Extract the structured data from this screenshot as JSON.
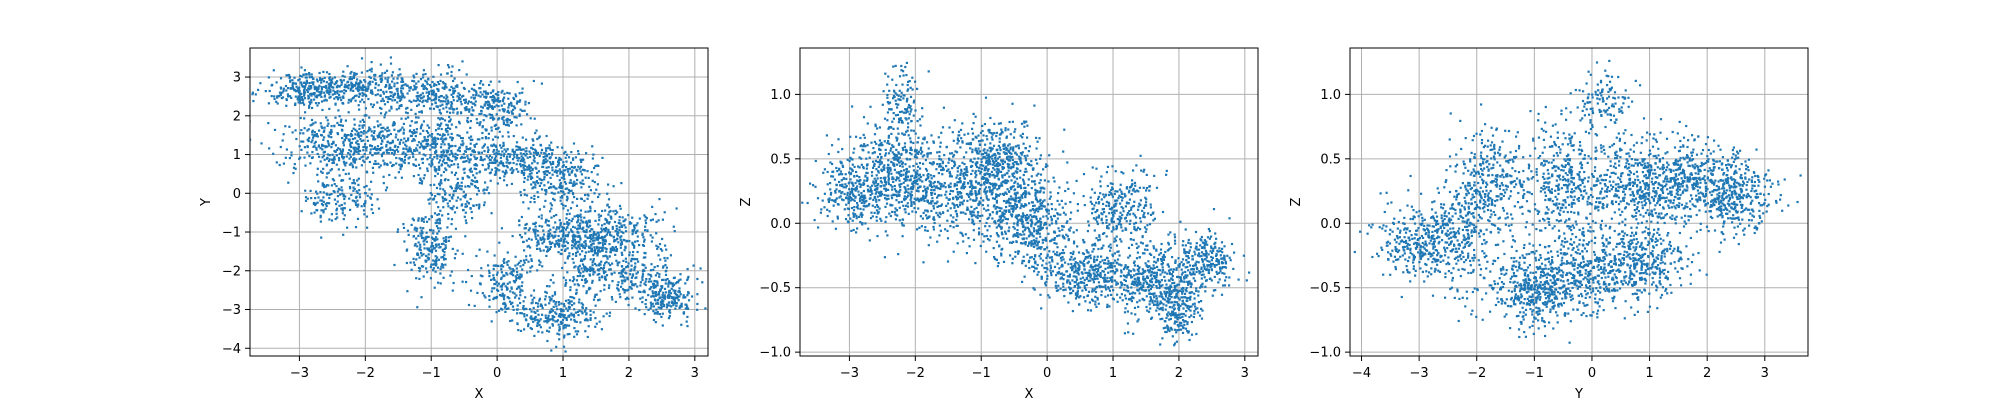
{
  "chart_data": [
    {
      "type": "scatter",
      "title": "",
      "xlabel": "X",
      "ylabel": "Y",
      "xlim": [
        -3.75,
        3.2
      ],
      "ylim": [
        -4.2,
        3.75
      ],
      "xticks": [
        -3,
        -2,
        -1,
        0,
        1,
        2,
        3
      ],
      "yticks": [
        -4,
        -3,
        -2,
        -1,
        0,
        1,
        2,
        3
      ],
      "grid": true,
      "color": "#1f77b4",
      "clusters": [
        {
          "cx": -2.9,
          "cy": 2.65,
          "sx": 0.35,
          "sy": 0.22,
          "n": 260
        },
        {
          "cx": -2.0,
          "cy": 2.75,
          "sx": 0.45,
          "sy": 0.25,
          "n": 240
        },
        {
          "cx": -0.9,
          "cy": 2.5,
          "sx": 0.45,
          "sy": 0.35,
          "n": 300
        },
        {
          "cx": 0.0,
          "cy": 2.2,
          "sx": 0.25,
          "sy": 0.35,
          "n": 170
        },
        {
          "cx": -2.3,
          "cy": 1.3,
          "sx": 0.5,
          "sy": 0.4,
          "n": 420
        },
        {
          "cx": -1.0,
          "cy": 1.2,
          "sx": 0.5,
          "sy": 0.4,
          "n": 420
        },
        {
          "cx": 0.3,
          "cy": 0.85,
          "sx": 0.4,
          "sy": 0.3,
          "n": 300
        },
        {
          "cx": -2.4,
          "cy": -0.1,
          "sx": 0.3,
          "sy": 0.35,
          "n": 160
        },
        {
          "cx": -0.6,
          "cy": 0.0,
          "sx": 0.25,
          "sy": 0.4,
          "n": 160
        },
        {
          "cx": -1.0,
          "cy": -1.4,
          "sx": 0.2,
          "sy": 0.45,
          "n": 220
        },
        {
          "cx": 1.0,
          "cy": 0.3,
          "sx": 0.3,
          "sy": 0.35,
          "n": 220
        },
        {
          "cx": 0.9,
          "cy": -1.1,
          "sx": 0.3,
          "sy": 0.3,
          "n": 220
        },
        {
          "cx": 1.7,
          "cy": -1.0,
          "sx": 0.4,
          "sy": 0.35,
          "n": 300
        },
        {
          "cx": 0.9,
          "cy": -3.15,
          "sx": 0.3,
          "sy": 0.3,
          "n": 240
        },
        {
          "cx": 0.2,
          "cy": -2.4,
          "sx": 0.3,
          "sy": 0.4,
          "n": 200
        },
        {
          "cx": 2.0,
          "cy": -2.1,
          "sx": 0.35,
          "sy": 0.4,
          "n": 220
        },
        {
          "cx": 2.6,
          "cy": -2.7,
          "sx": 0.2,
          "sy": 0.3,
          "n": 200
        },
        {
          "cx": 1.4,
          "cy": -1.8,
          "sx": 0.2,
          "sy": 0.45,
          "n": 150
        }
      ]
    },
    {
      "type": "scatter",
      "title": "",
      "xlabel": "X",
      "ylabel": "Z",
      "xlim": [
        -3.75,
        3.2
      ],
      "ylim": [
        -1.03,
        1.36
      ],
      "xticks": [
        -3,
        -2,
        -1,
        0,
        1,
        2,
        3
      ],
      "yticks": [
        -1.0,
        -0.5,
        0.0,
        0.5,
        1.0
      ],
      "grid": true,
      "color": "#1f77b4",
      "clusters": [
        {
          "cx": -2.9,
          "cy": 0.25,
          "sx": 0.3,
          "sy": 0.15,
          "n": 300
        },
        {
          "cx": -2.3,
          "cy": 0.4,
          "sx": 0.3,
          "sy": 0.2,
          "n": 420
        },
        {
          "cx": -2.2,
          "cy": 0.95,
          "sx": 0.15,
          "sy": 0.12,
          "n": 110
        },
        {
          "cx": -1.6,
          "cy": 0.25,
          "sx": 0.35,
          "sy": 0.18,
          "n": 380
        },
        {
          "cx": -0.8,
          "cy": 0.45,
          "sx": 0.35,
          "sy": 0.18,
          "n": 520
        },
        {
          "cx": -0.5,
          "cy": 0.1,
          "sx": 0.35,
          "sy": 0.18,
          "n": 360
        },
        {
          "cx": -0.1,
          "cy": -0.1,
          "sx": 0.25,
          "sy": 0.15,
          "n": 220
        },
        {
          "cx": 0.6,
          "cy": -0.4,
          "sx": 0.35,
          "sy": 0.12,
          "n": 380
        },
        {
          "cx": 1.1,
          "cy": 0.1,
          "sx": 0.3,
          "sy": 0.15,
          "n": 300
        },
        {
          "cx": 1.6,
          "cy": -0.45,
          "sx": 0.3,
          "sy": 0.14,
          "n": 380
        },
        {
          "cx": 2.0,
          "cy": -0.65,
          "sx": 0.15,
          "sy": 0.12,
          "n": 180
        },
        {
          "cx": 2.4,
          "cy": -0.3,
          "sx": 0.25,
          "sy": 0.12,
          "n": 260
        }
      ]
    },
    {
      "type": "scatter",
      "title": "",
      "xlabel": "Y",
      "ylabel": "Z",
      "xlim": [
        -4.2,
        3.75
      ],
      "ylim": [
        -1.03,
        1.36
      ],
      "xticks": [
        -4,
        -3,
        -2,
        -1,
        0,
        1,
        2,
        3
      ],
      "yticks": [
        -1.0,
        -0.5,
        0.0,
        0.5,
        1.0
      ],
      "grid": true,
      "color": "#1f77b4",
      "clusters": [
        {
          "cx": -3.0,
          "cy": -0.15,
          "sx": 0.4,
          "sy": 0.14,
          "n": 300
        },
        {
          "cx": -2.3,
          "cy": -0.1,
          "sx": 0.35,
          "sy": 0.2,
          "n": 280
        },
        {
          "cx": -1.8,
          "cy": 0.35,
          "sx": 0.3,
          "sy": 0.2,
          "n": 300
        },
        {
          "cx": -1.0,
          "cy": -0.5,
          "sx": 0.4,
          "sy": 0.15,
          "n": 460
        },
        {
          "cx": -0.4,
          "cy": 0.3,
          "sx": 0.4,
          "sy": 0.25,
          "n": 460
        },
        {
          "cx": 0.0,
          "cy": -0.4,
          "sx": 0.45,
          "sy": 0.15,
          "n": 360
        },
        {
          "cx": 0.9,
          "cy": -0.3,
          "sx": 0.35,
          "sy": 0.15,
          "n": 320
        },
        {
          "cx": 0.9,
          "cy": 0.3,
          "sx": 0.4,
          "sy": 0.18,
          "n": 420
        },
        {
          "cx": 0.2,
          "cy": 0.95,
          "sx": 0.25,
          "sy": 0.12,
          "n": 120
        },
        {
          "cx": 1.7,
          "cy": 0.35,
          "sx": 0.35,
          "sy": 0.15,
          "n": 320
        },
        {
          "cx": 2.5,
          "cy": 0.2,
          "sx": 0.35,
          "sy": 0.14,
          "n": 360
        }
      ]
    }
  ]
}
